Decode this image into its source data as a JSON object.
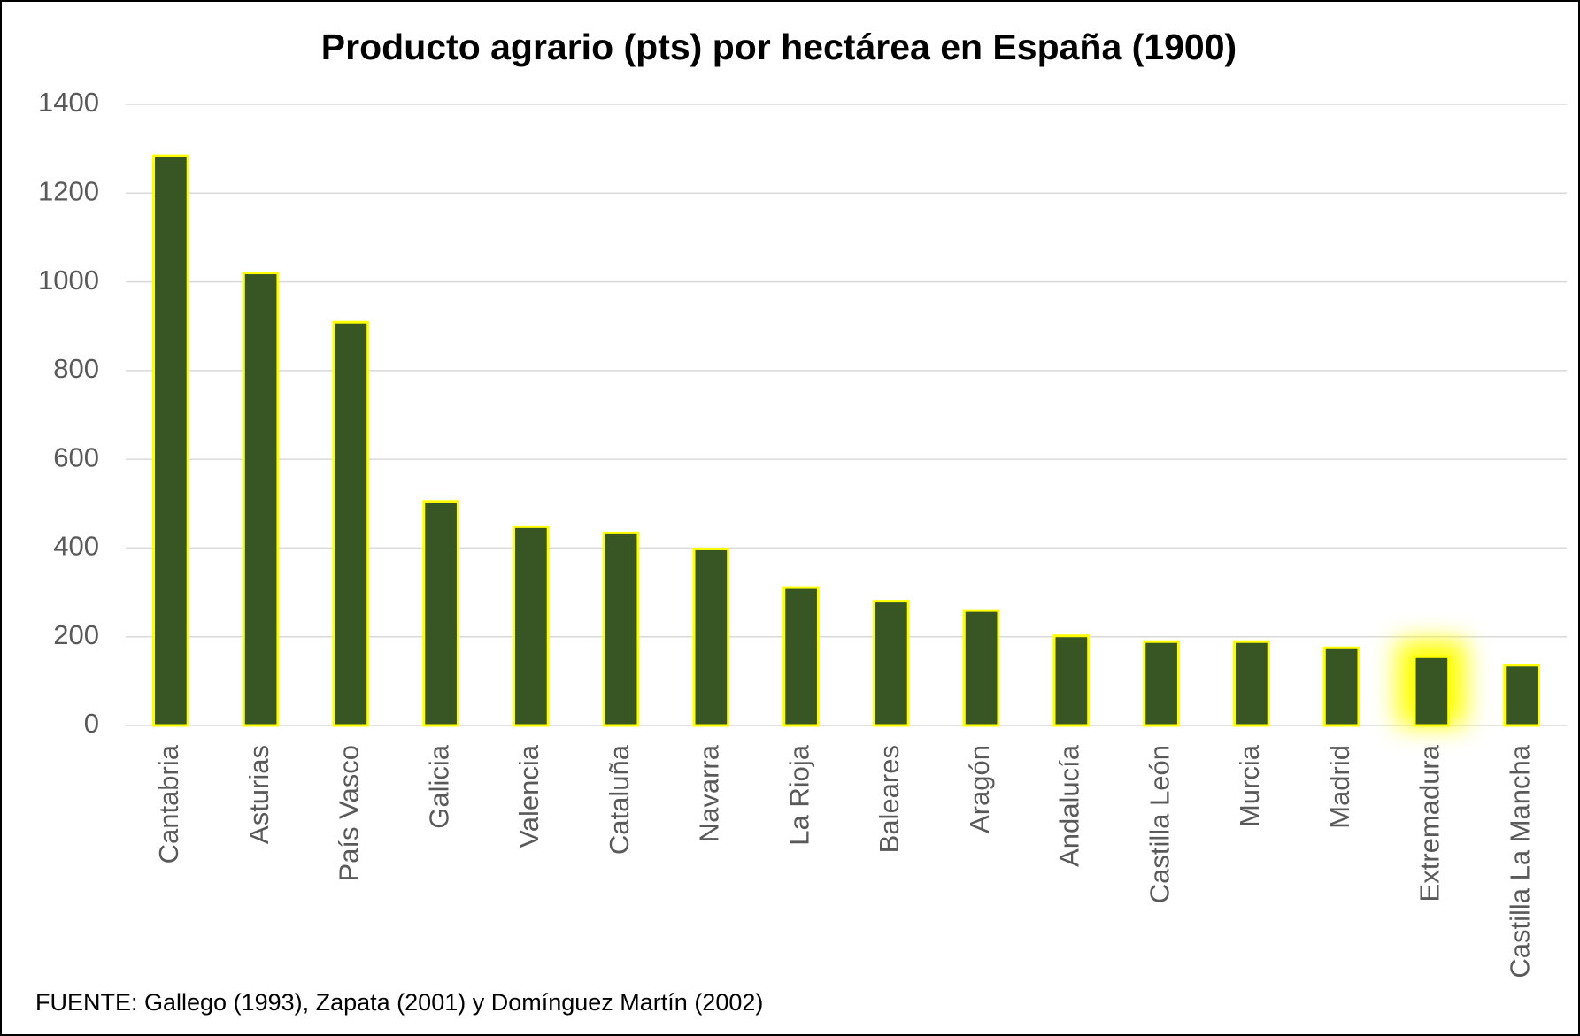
{
  "chart_data": {
    "type": "bar",
    "title": "Producto agrario (pts) por hectárea en España (1900)",
    "categories": [
      "Cantabria",
      "Asturias",
      "País Vasco",
      "Galicia",
      "Valencia",
      "Cataluña",
      "Navarra",
      "La Rioja",
      "Baleares",
      "Aragón",
      "Andalucía",
      "Castilla León",
      "Murcia",
      "Madrid",
      "Extremadura",
      "Castilla La Mancha"
    ],
    "values": [
      1284,
      1020,
      909,
      505,
      448,
      434,
      398,
      311,
      280,
      259,
      202,
      189,
      189,
      175,
      155,
      136
    ],
    "color": "#375623",
    "edge_color": "#ffff00",
    "highlight_index": 14,
    "highlight_color": "#ffff00",
    "ylim": [
      0,
      1400
    ],
    "yticks": [
      0,
      200,
      400,
      600,
      800,
      1000,
      1200,
      1400
    ],
    "grid": true,
    "annotation": "FUENTE: Gallego (1993), Zapata (2001) y Domínguez Martín (2002)"
  }
}
